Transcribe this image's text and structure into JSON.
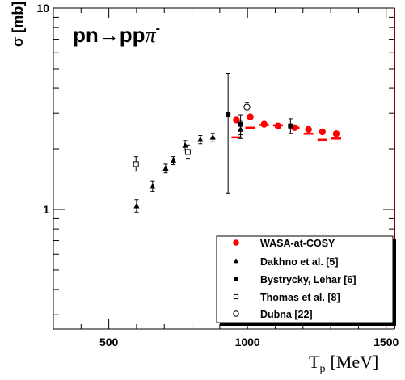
{
  "chart_data": {
    "type": "scatter",
    "title": "pn→ppπ⁻",
    "title_main": "pn→pp",
    "title_pi": "π",
    "title_sup": "-",
    "xlabel": "T",
    "xlabel_sub": "p",
    "xlabel_unit": "[MeV]",
    "ylabel": "σ [mb]",
    "y_scale": "log",
    "xlim": [
      300,
      1530
    ],
    "ylim": [
      0.3,
      10
    ],
    "x_ticks": [
      500,
      1000,
      1500
    ],
    "x_tick_labels": [
      "500",
      "1000",
      "1500"
    ],
    "y_tick_labels": [
      {
        "value": 1,
        "label": "1"
      },
      {
        "value": 10,
        "label": "10"
      }
    ],
    "grid": false,
    "legend_position": "bottom-right",
    "colors": {
      "wasa": "#ff0000",
      "other": "#000000"
    },
    "series": [
      {
        "name": "WASA-at-COSY",
        "marker": "filled-circle",
        "color": "#ff0000",
        "points": [
          {
            "x": 960,
            "y": 2.78
          },
          {
            "x": 1010,
            "y": 2.88
          },
          {
            "x": 1060,
            "y": 2.65
          },
          {
            "x": 1110,
            "y": 2.6
          },
          {
            "x": 1170,
            "y": 2.55
          },
          {
            "x": 1220,
            "y": 2.5
          },
          {
            "x": 1270,
            "y": 2.43
          },
          {
            "x": 1320,
            "y": 2.38
          }
        ],
        "systematic_low": [
          {
            "x": 960,
            "y": 2.28
          },
          {
            "x": 1010,
            "y": 2.55
          },
          {
            "x": 1060,
            "y": 2.63
          },
          {
            "x": 1110,
            "y": 2.62
          },
          {
            "x": 1170,
            "y": 2.55
          },
          {
            "x": 1220,
            "y": 2.38
          },
          {
            "x": 1270,
            "y": 2.22
          },
          {
            "x": 1320,
            "y": 2.25
          }
        ]
      },
      {
        "name": "Dakhno et al. [5]",
        "marker": "filled-triangle",
        "color": "#000000",
        "points": [
          {
            "x": 600,
            "y": 1.04,
            "lo": 0.97,
            "hi": 1.12
          },
          {
            "x": 658,
            "y": 1.3,
            "lo": 1.23,
            "hi": 1.38
          },
          {
            "x": 705,
            "y": 1.6,
            "lo": 1.52,
            "hi": 1.68
          },
          {
            "x": 733,
            "y": 1.75,
            "lo": 1.67,
            "hi": 1.83
          },
          {
            "x": 775,
            "y": 2.08,
            "lo": 1.97,
            "hi": 2.2
          },
          {
            "x": 830,
            "y": 2.22,
            "lo": 2.12,
            "hi": 2.33
          },
          {
            "x": 875,
            "y": 2.28,
            "lo": 2.18,
            "hi": 2.38
          },
          {
            "x": 975,
            "y": 2.5,
            "lo": 2.25,
            "hi": 2.77
          }
        ]
      },
      {
        "name": "Bystrycky, Lehar [6]",
        "marker": "filled-square",
        "color": "#000000",
        "points": [
          {
            "x": 930,
            "y": 2.95,
            "lo": 1.2,
            "hi": 4.75
          },
          {
            "x": 975,
            "y": 2.65,
            "lo": 2.35,
            "hi": 2.95
          },
          {
            "x": 1155,
            "y": 2.6,
            "lo": 2.38,
            "hi": 2.82
          }
        ]
      },
      {
        "name": "Thomas et al. [8]",
        "marker": "open-square",
        "color": "#000000",
        "points": [
          {
            "x": 598,
            "y": 1.68,
            "lo": 1.55,
            "hi": 1.83
          },
          {
            "x": 785,
            "y": 1.93,
            "lo": 1.78,
            "hi": 2.09
          }
        ]
      },
      {
        "name": "Dubna [22]",
        "marker": "open-circle",
        "color": "#000000",
        "points": [
          {
            "x": 998,
            "y": 3.22,
            "lo": 3.05,
            "hi": 3.4
          }
        ]
      }
    ]
  }
}
